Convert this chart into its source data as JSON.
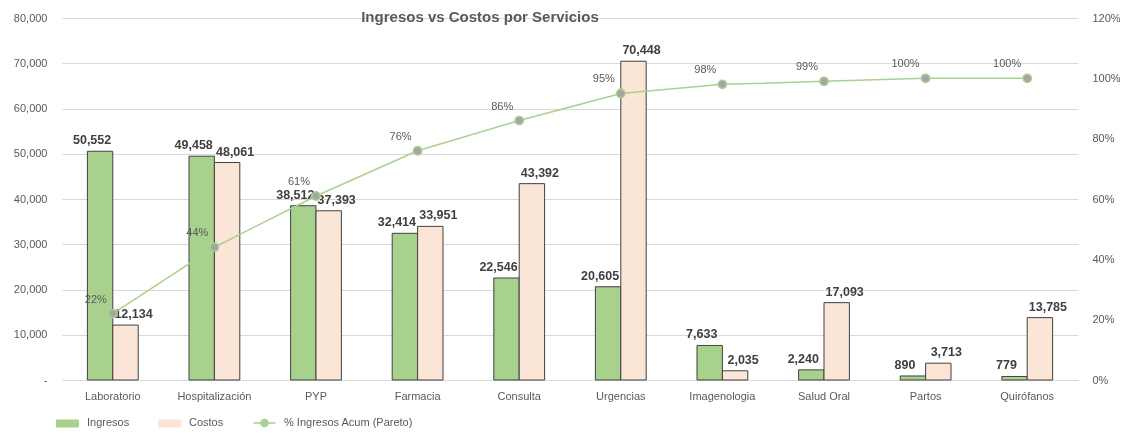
{
  "chart_data": {
    "type": "bar",
    "title": "Ingresos vs Costos por Servicios",
    "categories": [
      "Laboratorio",
      "Hospitalización",
      "PYP",
      "Farmacia",
      "Consulta",
      "Urgencias",
      "Imagenologia",
      "Salud Oral",
      "Partos",
      "Quirófanos"
    ],
    "series": [
      {
        "name": "Ingresos",
        "color": "#a9d18e",
        "values": [
          50552,
          49458,
          38512,
          32414,
          22546,
          20605,
          7633,
          2240,
          890,
          779
        ],
        "value_labels": [
          "50,552",
          "49,458",
          "38,512",
          "32,414",
          "22,546",
          "20,605",
          "7,633",
          "2,240",
          "890",
          "779"
        ]
      },
      {
        "name": "Costos",
        "color": "#fbe5d6",
        "values": [
          12134,
          48061,
          37393,
          33951,
          43392,
          70448,
          2035,
          17093,
          3713,
          13785
        ],
        "value_labels": [
          "12,134",
          "48,061",
          "37,393",
          "33,951",
          "43,392",
          "70,448",
          "2,035",
          "17,093",
          "3,713",
          "13,785"
        ]
      },
      {
        "name": "% Ingresos Acum (Pareto)",
        "type": "line",
        "axis": "y2",
        "color": "#a9d18e",
        "values": [
          22,
          44,
          61,
          76,
          86,
          95,
          98,
          99,
          100,
          100
        ],
        "value_labels": [
          "22%",
          "44%",
          "61%",
          "76%",
          "86%",
          "95%",
          "98%",
          "99%",
          "100%",
          "100%"
        ]
      }
    ],
    "ylim": [
      0,
      80000
    ],
    "yticks": [
      {
        "value": 0,
        "label": "-"
      },
      {
        "value": 10000,
        "label": "10,000"
      },
      {
        "value": 20000,
        "label": "20,000"
      },
      {
        "value": 30000,
        "label": "30,000"
      },
      {
        "value": 40000,
        "label": "40,000"
      },
      {
        "value": 50000,
        "label": "50,000"
      },
      {
        "value": 60000,
        "label": "60,000"
      },
      {
        "value": 70000,
        "label": "70,000"
      },
      {
        "value": 80000,
        "label": "80,000"
      }
    ],
    "y2lim": [
      0,
      120
    ],
    "y2ticks": [
      {
        "value": 0,
        "label": "0%"
      },
      {
        "value": 20,
        "label": "20%"
      },
      {
        "value": 40,
        "label": "40%"
      },
      {
        "value": 60,
        "label": "60%"
      },
      {
        "value": 80,
        "label": "80%"
      },
      {
        "value": 100,
        "label": "100%"
      },
      {
        "value": 120,
        "label": "120%"
      }
    ],
    "grid": "y",
    "legend": "bottom",
    "marker": "circle"
  }
}
